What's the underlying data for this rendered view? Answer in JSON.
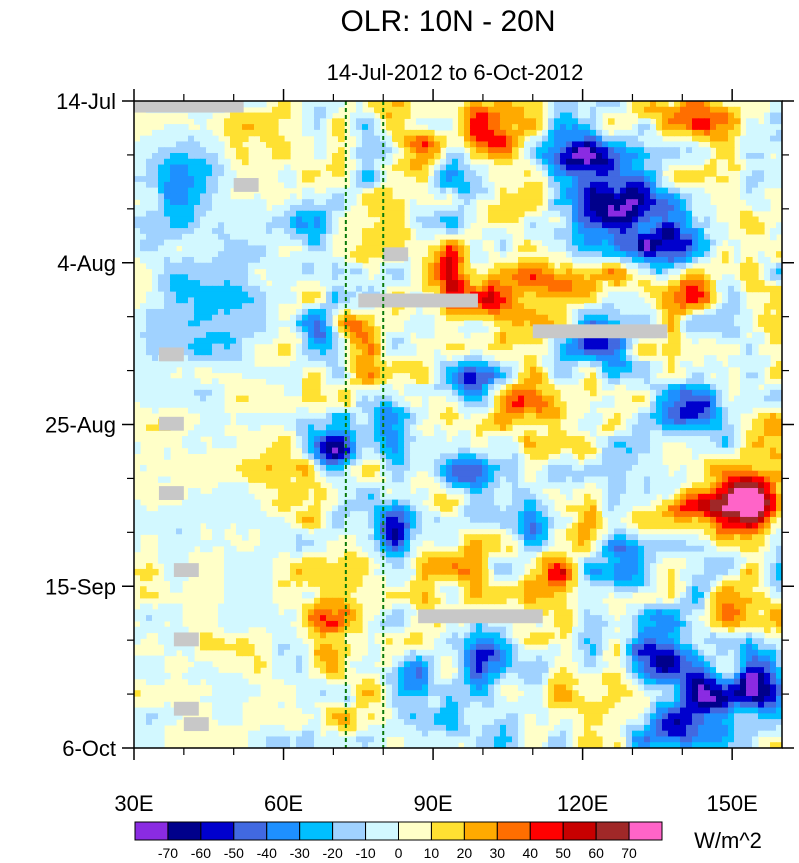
{
  "chart_data": {
    "type": "heatmap",
    "title": "OLR: 10N - 20N",
    "subtitle": "14-Jul-2012 to 6-Oct-2012",
    "x_axis": {
      "range": [
        30,
        160
      ],
      "units": "degrees east",
      "ticks": [
        {
          "value": 30,
          "label": "30E"
        },
        {
          "value": 60,
          "label": "60E"
        },
        {
          "value": 90,
          "label": "90E"
        },
        {
          "value": 120,
          "label": "120E"
        },
        {
          "value": 150,
          "label": "150E"
        }
      ]
    },
    "y_axis": {
      "range_days": [
        0,
        84
      ],
      "direction": "time increases downward",
      "ticks": [
        {
          "day": 0,
          "label": "14-Jul"
        },
        {
          "day": 21,
          "label": "4-Aug"
        },
        {
          "day": 42,
          "label": "25-Aug"
        },
        {
          "day": 63,
          "label": "15-Sep"
        },
        {
          "day": 84,
          "label": "6-Oct"
        }
      ],
      "minor_tick_interval_days": 7
    },
    "reference_lines_lon": [
      72.5,
      80
    ],
    "colorbar": {
      "units": "W/m^2",
      "levels": [
        -70,
        -60,
        -50,
        -40,
        -30,
        -20,
        -10,
        0,
        10,
        20,
        30,
        40,
        50,
        60,
        70
      ],
      "level_labels": [
        "-70",
        "-60",
        "-50",
        "-40",
        "-30",
        "-20",
        "-10",
        "0",
        "10",
        "20",
        "30",
        "40",
        "50",
        "60",
        "70"
      ],
      "colors": [
        "#8a2be2",
        "#00008b",
        "#0000cd",
        "#4169e1",
        "#1e90ff",
        "#00bfff",
        "#a0d2ff",
        "#d2f8ff",
        "#ffffc8",
        "#ffe132",
        "#ffaa00",
        "#ff6e00",
        "#ff0000",
        "#c80000",
        "#a02828",
        "#ff64c8"
      ]
    },
    "missing_color": "#c8c8c8",
    "missing_segments": [
      {
        "lon": [
          30,
          52
        ],
        "day": [
          0,
          1.5
        ]
      },
      {
        "lon": [
          50,
          55
        ],
        "day": [
          10,
          11.8
        ]
      },
      {
        "lon": [
          80,
          85
        ],
        "day": [
          19,
          20.8
        ]
      },
      {
        "lon": [
          75,
          99
        ],
        "day": [
          25,
          26.8
        ]
      },
      {
        "lon": [
          110,
          137
        ],
        "day": [
          29,
          30.8
        ]
      },
      {
        "lon": [
          35,
          40
        ],
        "day": [
          32,
          33.8
        ]
      },
      {
        "lon": [
          35,
          40
        ],
        "day": [
          41,
          42.8
        ]
      },
      {
        "lon": [
          35,
          40
        ],
        "day": [
          50,
          51.8
        ]
      },
      {
        "lon": [
          38,
          43
        ],
        "day": [
          60,
          61.8
        ]
      },
      {
        "lon": [
          38,
          43
        ],
        "day": [
          69,
          70.8
        ]
      },
      {
        "lon": [
          87,
          112
        ],
        "day": [
          66,
          67.8
        ]
      },
      {
        "lon": [
          38,
          43
        ],
        "day": [
          78,
          79.8
        ]
      },
      {
        "lon": [
          40,
          45
        ],
        "day": [
          80,
          81.8
        ]
      }
    ],
    "field_features": [
      {
        "lon": 40,
        "day": 10,
        "value": -30,
        "spread_lon": 8,
        "spread_day": 6
      },
      {
        "lon": 45,
        "day": 25,
        "value": -25,
        "spread_lon": 10,
        "spread_day": 8
      },
      {
        "lon": 55,
        "day": 5,
        "value": 15,
        "spread_lon": 6,
        "spread_day": 6
      },
      {
        "lon": 58,
        "day": 45,
        "value": 10,
        "spread_lon": 8,
        "spread_day": 15
      },
      {
        "lon": 65,
        "day": 15,
        "value": -20,
        "spread_lon": 6,
        "spread_day": 5
      },
      {
        "lon": 70,
        "day": 46,
        "value": -55,
        "spread_lon": 4,
        "spread_day": 3
      },
      {
        "lon": 68,
        "day": 30,
        "value": -30,
        "spread_lon": 5,
        "spread_day": 4
      },
      {
        "lon": 70,
        "day": 66,
        "value": 30,
        "spread_lon": 5,
        "spread_day": 4
      },
      {
        "lon": 68,
        "day": 73,
        "value": 30,
        "spread_lon": 4,
        "spread_day": 3
      },
      {
        "lon": 75,
        "day": 30,
        "value": 40,
        "spread_lon": 4,
        "spread_day": 3
      },
      {
        "lon": 77,
        "day": 36,
        "value": 35,
        "spread_lon": 4,
        "spread_day": 3
      },
      {
        "lon": 80,
        "day": 42,
        "value": -35,
        "spread_lon": 5,
        "spread_day": 4
      },
      {
        "lon": 82,
        "day": 55,
        "value": -50,
        "spread_lon": 4,
        "spread_day": 3
      },
      {
        "lon": 85,
        "day": 75,
        "value": -40,
        "spread_lon": 4,
        "spread_day": 3
      },
      {
        "lon": 88,
        "day": 6,
        "value": 35,
        "spread_lon": 6,
        "spread_day": 3
      },
      {
        "lon": 95,
        "day": 12,
        "value": -25,
        "spread_lon": 8,
        "spread_day": 4
      },
      {
        "lon": 92,
        "day": 22,
        "value": 40,
        "spread_lon": 5,
        "spread_day": 3
      },
      {
        "lon": 100,
        "day": 26,
        "value": 45,
        "spread_lon": 8,
        "spread_day": 3
      },
      {
        "lon": 102,
        "day": 4,
        "value": 40,
        "spread_lon": 8,
        "spread_day": 3
      },
      {
        "lon": 105,
        "day": 14,
        "value": 30,
        "spread_lon": 8,
        "spread_day": 3
      },
      {
        "lon": 97,
        "day": 36,
        "value": -35,
        "spread_lon": 6,
        "spread_day": 3
      },
      {
        "lon": 97,
        "day": 48,
        "value": -40,
        "spread_lon": 5,
        "spread_day": 3
      },
      {
        "lon": 95,
        "day": 60,
        "value": 25,
        "spread_lon": 6,
        "spread_day": 3
      },
      {
        "lon": 100,
        "day": 72,
        "value": -40,
        "spread_lon": 5,
        "spread_day": 3
      },
      {
        "lon": 110,
        "day": 40,
        "value": 30,
        "spread_lon": 6,
        "spread_day": 3
      },
      {
        "lon": 110,
        "day": 55,
        "value": -35,
        "spread_lon": 5,
        "spread_day": 3
      },
      {
        "lon": 115,
        "day": 62,
        "value": 30,
        "spread_lon": 6,
        "spread_day": 3
      },
      {
        "lon": 118,
        "day": 7,
        "value": -60,
        "spread_lon": 8,
        "spread_day": 3
      },
      {
        "lon": 125,
        "day": 10,
        "value": -45,
        "spread_lon": 10,
        "spread_day": 4
      },
      {
        "lon": 128,
        "day": 15,
        "value": -60,
        "spread_lon": 8,
        "spread_day": 3
      },
      {
        "lon": 137,
        "day": 19,
        "value": -65,
        "spread_lon": 7,
        "spread_day": 3
      },
      {
        "lon": 115,
        "day": 24,
        "value": 40,
        "spread_lon": 8,
        "spread_day": 3
      },
      {
        "lon": 124,
        "day": 31,
        "value": -50,
        "spread_lon": 6,
        "spread_day": 3
      },
      {
        "lon": 145,
        "day": 2,
        "value": 40,
        "spread_lon": 10,
        "spread_day": 3
      },
      {
        "lon": 140,
        "day": 24,
        "value": 25,
        "spread_lon": 10,
        "spread_day": 4
      },
      {
        "lon": 143,
        "day": 40,
        "value": -55,
        "spread_lon": 6,
        "spread_day": 3
      },
      {
        "lon": 135,
        "day": 50,
        "value": -30,
        "spread_lon": 8,
        "spread_day": 4
      },
      {
        "lon": 145,
        "day": 53,
        "value": 50,
        "spread_lon": 12,
        "spread_day": 3
      },
      {
        "lon": 155,
        "day": 52,
        "value": 55,
        "spread_lon": 6,
        "spread_day": 4
      },
      {
        "lon": 128,
        "day": 61,
        "value": -50,
        "spread_lon": 6,
        "spread_day": 3
      },
      {
        "lon": 138,
        "day": 68,
        "value": -30,
        "spread_lon": 8,
        "spread_day": 4
      },
      {
        "lon": 135,
        "day": 73,
        "value": -65,
        "spread_lon": 6,
        "spread_day": 3
      },
      {
        "lon": 145,
        "day": 77,
        "value": -55,
        "spread_lon": 5,
        "spread_day": 3
      },
      {
        "lon": 155,
        "day": 76,
        "value": -60,
        "spread_lon": 5,
        "spread_day": 4
      },
      {
        "lon": 140,
        "day": 81,
        "value": -50,
        "spread_lon": 10,
        "spread_day": 3
      },
      {
        "lon": 152,
        "day": 66,
        "value": 25,
        "spread_lon": 6,
        "spread_day": 4
      }
    ]
  }
}
